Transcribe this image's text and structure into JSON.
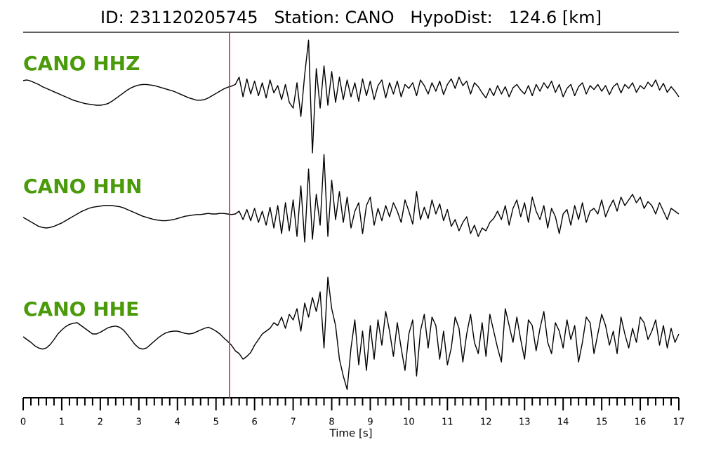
{
  "chart_data": {
    "type": "line",
    "title": "ID: 231120205745   Station: CANO   HypoDist:   124.6 [km]",
    "xlabel": "Time [s]",
    "xlim": [
      0,
      17
    ],
    "xticks": [
      0,
      1,
      2,
      3,
      4,
      5,
      6,
      7,
      8,
      9,
      10,
      11,
      12,
      13,
      14,
      15,
      16,
      17
    ],
    "xminorticks": [
      0.2,
      0.4,
      0.6,
      0.8,
      1.2,
      1.4,
      1.6,
      1.8,
      2.2,
      2.4,
      2.6,
      2.8,
      3.2,
      3.4,
      3.6,
      3.8,
      4.2,
      4.4,
      4.6,
      4.8,
      5.2,
      5.4,
      5.6,
      5.8,
      6.2,
      6.4,
      6.6,
      6.8,
      7.2,
      7.4,
      7.6,
      7.8,
      8.2,
      8.4,
      8.6,
      8.8,
      9.2,
      9.4,
      9.6,
      9.8,
      10.2,
      10.4,
      10.6,
      10.8,
      11.2,
      11.4,
      11.6,
      11.8,
      12.2,
      12.4,
      12.6,
      12.8,
      13.2,
      13.4,
      13.6,
      13.8,
      14.2,
      14.4,
      14.6,
      14.8,
      15.2,
      15.4,
      15.6,
      15.8,
      16.2,
      16.4,
      16.6,
      16.8
    ],
    "pick": 5.35,
    "pick_color": "#e8141c",
    "label_color": "#4a9a0a",
    "x": [
      0,
      0.1,
      0.2,
      0.3,
      0.4,
      0.5,
      0.6,
      0.7,
      0.8,
      0.9,
      1,
      1.1,
      1.2,
      1.3,
      1.4,
      1.5,
      1.6,
      1.7,
      1.8,
      1.9,
      2,
      2.1,
      2.2,
      2.3,
      2.4,
      2.5,
      2.6,
      2.7,
      2.8,
      2.9,
      3,
      3.1,
      3.2,
      3.3,
      3.4,
      3.5,
      3.6,
      3.7,
      3.8,
      3.9,
      4,
      4.1,
      4.2,
      4.3,
      4.4,
      4.5,
      4.6,
      4.7,
      4.8,
      4.9,
      5,
      5.1,
      5.2,
      5.3,
      5.4,
      5.5,
      5.6,
      5.7,
      5.8,
      5.9,
      6,
      6.1,
      6.2,
      6.3,
      6.4,
      6.5,
      6.6,
      6.7,
      6.8,
      6.9,
      7,
      7.1,
      7.2,
      7.3,
      7.4,
      7.5,
      7.6,
      7.7,
      7.8,
      7.9,
      8,
      8.1,
      8.2,
      8.3,
      8.4,
      8.5,
      8.6,
      8.7,
      8.8,
      8.9,
      9,
      9.1,
      9.2,
      9.3,
      9.4,
      9.5,
      9.6,
      9.7,
      9.8,
      9.9,
      10,
      10.1,
      10.2,
      10.3,
      10.4,
      10.5,
      10.6,
      10.7,
      10.8,
      10.9,
      11,
      11.1,
      11.2,
      11.3,
      11.4,
      11.5,
      11.6,
      11.7,
      11.8,
      11.9,
      12,
      12.1,
      12.2,
      12.3,
      12.4,
      12.5,
      12.6,
      12.7,
      12.8,
      12.9,
      13,
      13.1,
      13.2,
      13.3,
      13.4,
      13.5,
      13.6,
      13.7,
      13.8,
      13.9,
      14,
      14.1,
      14.2,
      14.3,
      14.4,
      14.5,
      14.6,
      14.7,
      14.8,
      14.9,
      15,
      15.1,
      15.2,
      15.3,
      15.4,
      15.5,
      15.6,
      15.7,
      15.8,
      15.9,
      16,
      16.1,
      16.2,
      16.3,
      16.4,
      16.5,
      16.6,
      16.7,
      16.8,
      16.9,
      17
    ],
    "series": [
      {
        "name": "CANO HHZ",
        "color": "#000000",
        "values": [
          19,
          20,
          18,
          15,
          12,
          8,
          5,
          2,
          -1,
          -4,
          -7,
          -10,
          -13,
          -16,
          -18,
          -20,
          -22,
          -23,
          -24,
          -25,
          -25,
          -24,
          -22,
          -18,
          -13,
          -8,
          -3,
          2,
          6,
          9,
          11,
          12,
          12,
          11,
          10,
          8,
          6,
          4,
          2,
          0,
          -3,
          -6,
          -9,
          -12,
          -14,
          -16,
          -16,
          -15,
          -12,
          -8,
          -4,
          0,
          4,
          7,
          9,
          12,
          25,
          -10,
          22,
          -5,
          18,
          -8,
          15,
          -12,
          20,
          -3,
          10,
          -15,
          12,
          -20,
          -30,
          15,
          -45,
          30,
          91,
          -110,
          40,
          -30,
          45,
          -25,
          35,
          -20,
          25,
          -15,
          20,
          -10,
          15,
          -18,
          22,
          -8,
          18,
          -15,
          10,
          20,
          -12,
          15,
          -5,
          18,
          -10,
          12,
          5,
          15,
          -8,
          20,
          10,
          -5,
          15,
          0,
          18,
          -6,
          12,
          22,
          5,
          25,
          10,
          18,
          -5,
          15,
          8,
          -3,
          -12,
          5,
          -8,
          10,
          -5,
          8,
          -10,
          6,
          12,
          2,
          -5,
          10,
          -8,
          12,
          0,
          15,
          5,
          18,
          -2,
          12,
          -10,
          5,
          12,
          -8,
          8,
          15,
          -5,
          10,
          3,
          12,
          0,
          10,
          -6,
          8,
          14,
          -3,
          12,
          5,
          15,
          -2,
          10,
          4,
          16,
          8,
          20,
          2,
          14,
          -2,
          8,
          0,
          -10
        ]
      },
      {
        "name": "CANO HHN",
        "color": "#000000",
        "values": [
          -6,
          -10,
          -14,
          -18,
          -22,
          -24,
          -25,
          -24,
          -22,
          -19,
          -16,
          -12,
          -8,
          -4,
          0,
          4,
          7,
          10,
          12,
          13,
          14,
          15,
          15,
          15,
          14,
          13,
          11,
          8,
          5,
          2,
          -1,
          -4,
          -6,
          -8,
          -10,
          -11,
          -12,
          -12,
          -11,
          -10,
          -8,
          -6,
          -4,
          -3,
          -2,
          -1,
          -1,
          0,
          1,
          0,
          0,
          1,
          1,
          0,
          -1,
          0,
          5,
          -10,
          8,
          -12,
          10,
          -15,
          5,
          -20,
          12,
          -25,
          15,
          -35,
          20,
          -30,
          25,
          -40,
          50,
          -50,
          80,
          -45,
          35,
          -20,
          106,
          -40,
          60,
          -10,
          40,
          -15,
          30,
          -25,
          5,
          20,
          -35,
          15,
          30,
          -20,
          10,
          -12,
          15,
          -5,
          20,
          5,
          -15,
          25,
          5,
          -18,
          40,
          -10,
          12,
          -8,
          25,
          0,
          18,
          -12,
          8,
          -22,
          -10,
          -30,
          -15,
          -5,
          -35,
          -20,
          -40,
          -25,
          -30,
          -15,
          -8,
          5,
          -10,
          15,
          -20,
          10,
          25,
          -5,
          20,
          -15,
          30,
          5,
          -10,
          15,
          -25,
          10,
          -5,
          -35,
          0,
          8,
          -20,
          15,
          -10,
          20,
          -15,
          5,
          10,
          0,
          25,
          -5,
          12,
          25,
          5,
          30,
          15,
          25,
          35,
          20,
          30,
          10,
          22,
          15,
          0,
          20,
          5,
          -10,
          10,
          5,
          0
        ]
      },
      {
        "name": "CANO HHE",
        "color": "#000000",
        "values": [
          0,
          -5,
          -10,
          -16,
          -20,
          -22,
          -20,
          -14,
          -5,
          5,
          12,
          18,
          22,
          24,
          25,
          20,
          15,
          10,
          5,
          5,
          8,
          12,
          16,
          18,
          19,
          17,
          12,
          4,
          -5,
          -14,
          -20,
          -22,
          -20,
          -14,
          -8,
          -2,
          3,
          7,
          9,
          10,
          10,
          8,
          6,
          5,
          6,
          9,
          12,
          15,
          17,
          14,
          10,
          5,
          -2,
          -8,
          -15,
          -25,
          -30,
          -40,
          -35,
          -28,
          -15,
          -5,
          5,
          10,
          15,
          25,
          20,
          35,
          15,
          40,
          30,
          50,
          10,
          60,
          35,
          70,
          45,
          80,
          -20,
          106,
          50,
          20,
          -40,
          -70,
          -94,
          -20,
          30,
          -50,
          10,
          -60,
          20,
          -40,
          30,
          -15,
          45,
          10,
          -35,
          25,
          -20,
          -60,
          5,
          30,
          -70,
          10,
          40,
          -20,
          35,
          20,
          -40,
          10,
          -50,
          -20,
          35,
          15,
          -45,
          5,
          40,
          -10,
          -30,
          25,
          -35,
          40,
          10,
          -20,
          -45,
          50,
          20,
          -10,
          35,
          -5,
          -40,
          30,
          20,
          -25,
          15,
          45,
          -10,
          -30,
          25,
          10,
          -20,
          30,
          -5,
          20,
          -45,
          -10,
          35,
          25,
          -30,
          5,
          40,
          20,
          -15,
          10,
          -30,
          35,
          5,
          -20,
          15,
          -10,
          35,
          25,
          -5,
          10,
          30,
          -15,
          20,
          -20,
          15,
          -10,
          5
        ]
      }
    ]
  }
}
